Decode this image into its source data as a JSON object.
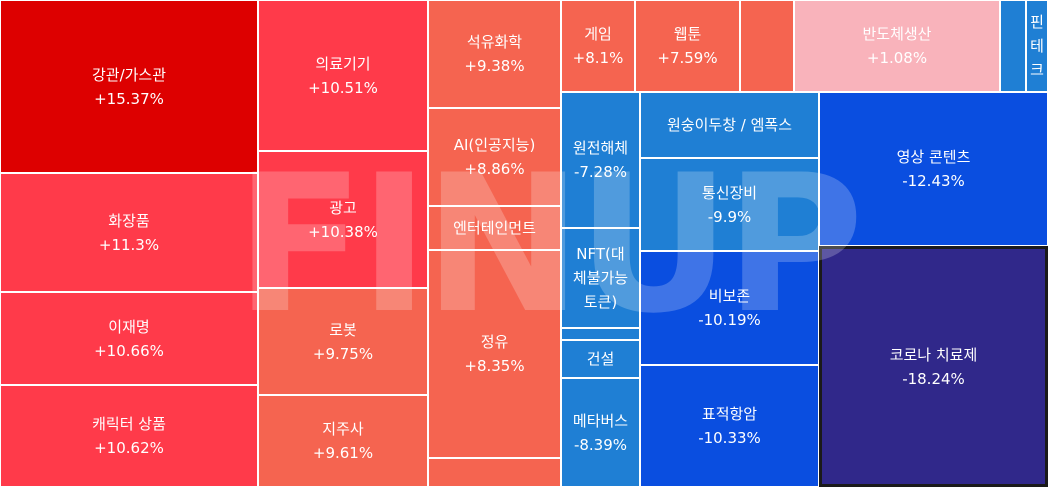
{
  "watermark": "FINUP",
  "chart_data": {
    "type": "treemap",
    "cells": [
      {
        "label": "강관/가스관",
        "change": "+15.37%",
        "value": 15.37,
        "color": "#dd0000"
      },
      {
        "label": "화장품",
        "change": "+11.3%",
        "value": 11.3,
        "color": "#ff3a4a"
      },
      {
        "label": "이재명",
        "change": "+10.66%",
        "value": 10.66,
        "color": "#ff3a4a"
      },
      {
        "label": "캐릭터 상품",
        "change": "+10.62%",
        "value": 10.62,
        "color": "#ff3a4a"
      },
      {
        "label": "의료기기",
        "change": "+10.51%",
        "value": 10.51,
        "color": "#ff3a4a"
      },
      {
        "label": "광고",
        "change": "+10.38%",
        "value": 10.38,
        "color": "#ff3a4a"
      },
      {
        "label": "로봇",
        "change": "+9.75%",
        "value": 9.75,
        "color": "#f56450"
      },
      {
        "label": "지주사",
        "change": "+9.61%",
        "value": 9.61,
        "color": "#f56450"
      },
      {
        "label": "석유화학",
        "change": "+9.38%",
        "value": 9.38,
        "color": "#f56450"
      },
      {
        "label": "AI(인공지능)",
        "change": "+8.86%",
        "value": 8.86,
        "color": "#f56450"
      },
      {
        "label": "엔터테인먼트",
        "change": "",
        "value": null,
        "color": "#f56450"
      },
      {
        "label": "정유",
        "change": "+8.35%",
        "value": 8.35,
        "color": "#f56450"
      },
      {
        "label": "",
        "change": "",
        "value": null,
        "color": "#f56450"
      },
      {
        "label": "게임",
        "change": "+8.1%",
        "value": 8.1,
        "color": "#f56450"
      },
      {
        "label": "웹툰",
        "change": "+7.59%",
        "value": 7.59,
        "color": "#f56450"
      },
      {
        "label": "",
        "change": "",
        "value": null,
        "color": "#f56450"
      },
      {
        "label": "반도체생산",
        "change": "+1.08%",
        "value": 1.08,
        "color": "#f9b3bb"
      },
      {
        "label": "",
        "change": "",
        "value": null,
        "color": "#1f7fd4"
      },
      {
        "label": "핀\n테\n크",
        "change": "",
        "value": null,
        "color": "#1f7fd4"
      },
      {
        "label": "원전해체",
        "change": "-7.28%",
        "value": -7.28,
        "color": "#1f7fd4"
      },
      {
        "label": "NFT(대\n체불가능\n토큰)",
        "change": "",
        "value": null,
        "color": "#1f7fd4"
      },
      {
        "label": "",
        "change": "",
        "value": null,
        "color": "#1f7fd4"
      },
      {
        "label": "건설",
        "change": "",
        "value": null,
        "color": "#1f7fd4"
      },
      {
        "label": "메타버스",
        "change": "-8.39%",
        "value": -8.39,
        "color": "#1f7fd4"
      },
      {
        "label": "원숭이두창 / 엠폭스",
        "change": "",
        "value": null,
        "color": "#1f7fd4"
      },
      {
        "label": "통신장비",
        "change": "-9.9%",
        "value": -9.9,
        "color": "#1f7fd4"
      },
      {
        "label": "비보존",
        "change": "-10.19%",
        "value": -10.19,
        "color": "#0a4ee0"
      },
      {
        "label": "표적항암",
        "change": "-10.33%",
        "value": -10.33,
        "color": "#0a4ee0"
      },
      {
        "label": "영상 콘텐츠",
        "change": "-12.43%",
        "value": -12.43,
        "color": "#0a4ee0"
      },
      {
        "label": "코로나 치료제",
        "change": "-18.24%",
        "value": -18.24,
        "color": "#30288a"
      }
    ]
  }
}
